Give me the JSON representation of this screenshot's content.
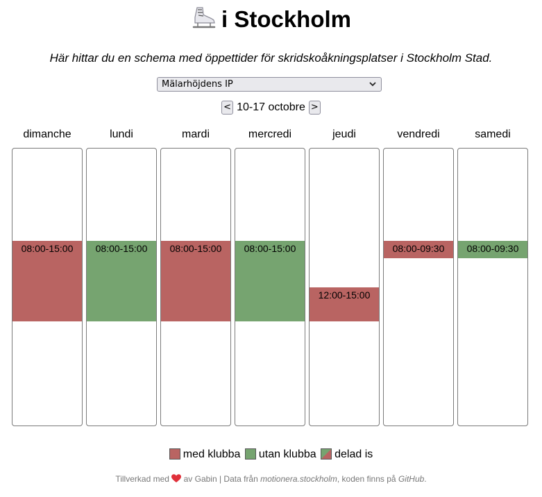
{
  "header": {
    "title_prefix": "⛸",
    "title_text": "i Stockholm"
  },
  "subtitle": "Här hittar du en schema med öppettider för skridskoåkningsplatser i Stockholm Stad.",
  "location_select": {
    "value": "Mälarhöjdens IP"
  },
  "week_nav": {
    "prev_label": "<",
    "label": "10-17 octobre",
    "next_label": ">"
  },
  "colors": {
    "med_klubba": "#b96462",
    "utan_klubba": "#76a470",
    "border": "#7a7a7a"
  },
  "schedule": {
    "hours_visible": [
      0,
      24
    ],
    "days": [
      {
        "name": "dimanche",
        "slot": {
          "label": "08:00-15:00",
          "start": 8,
          "end": 15,
          "type": "med_klubba"
        }
      },
      {
        "name": "lundi",
        "slot": {
          "label": "08:00-15:00",
          "start": 8,
          "end": 15,
          "type": "utan_klubba"
        }
      },
      {
        "name": "mardi",
        "slot": {
          "label": "08:00-15:00",
          "start": 8,
          "end": 15,
          "type": "med_klubba"
        }
      },
      {
        "name": "mercredi",
        "slot": {
          "label": "08:00-15:00",
          "start": 8,
          "end": 15,
          "type": "utan_klubba"
        }
      },
      {
        "name": "jeudi",
        "slot": {
          "label": "12:00-15:00",
          "start": 12,
          "end": 15,
          "type": "med_klubba"
        }
      },
      {
        "name": "vendredi",
        "slot": {
          "label": "08:00-09:30",
          "start": 8,
          "end": 9.5,
          "type": "med_klubba"
        }
      },
      {
        "name": "samedi",
        "slot": {
          "label": "08:00-09:30",
          "start": 8,
          "end": 9.5,
          "type": "utan_klubba"
        }
      }
    ]
  },
  "legend": {
    "med_klubba": "med klubba",
    "utan_klubba": "utan klubba",
    "delad_is": "delad is"
  },
  "footer": {
    "made_with": "Tillverkad med",
    "heart": "❤",
    "by": "av Gabin | Data från",
    "data_source": "motionera.stockholm",
    "code_text": ", koden finns på",
    "github": "GitHub",
    "period": "."
  }
}
